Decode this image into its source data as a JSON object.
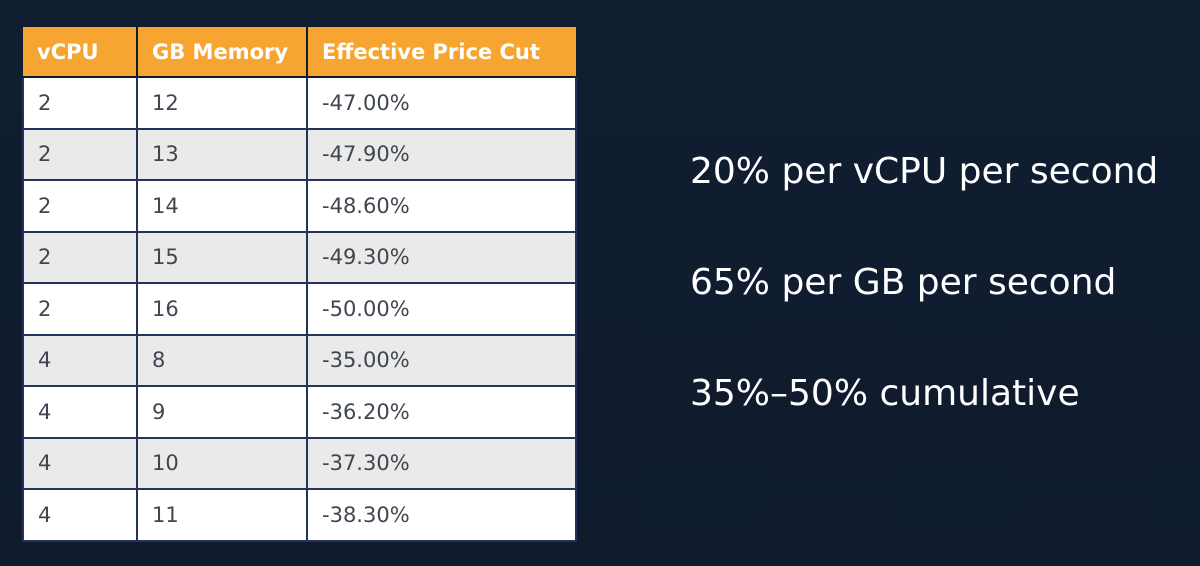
{
  "table": {
    "headers": [
      "vCPU",
      "GB Memory",
      "Effective Price Cut"
    ],
    "rows": [
      [
        "2",
        "12",
        "-47.00%"
      ],
      [
        "2",
        "13",
        "-47.90%"
      ],
      [
        "2",
        "14",
        "-48.60%"
      ],
      [
        "2",
        "15",
        "-49.30%"
      ],
      [
        "2",
        "16",
        "-50.00%"
      ],
      [
        "4",
        "8",
        "-35.00%"
      ],
      [
        "4",
        "9",
        "-36.20%"
      ],
      [
        "4",
        "10",
        "-37.30%"
      ],
      [
        "4",
        "11",
        "-38.30%"
      ]
    ]
  },
  "stats": [
    "20% per vCPU per second",
    "65% per GB per second",
    "35%–50% cumulative"
  ],
  "colors": {
    "background": "#0f1b2d",
    "header": "#f7a531",
    "row_alt": "#eaeaea",
    "grid": "#23335c"
  }
}
